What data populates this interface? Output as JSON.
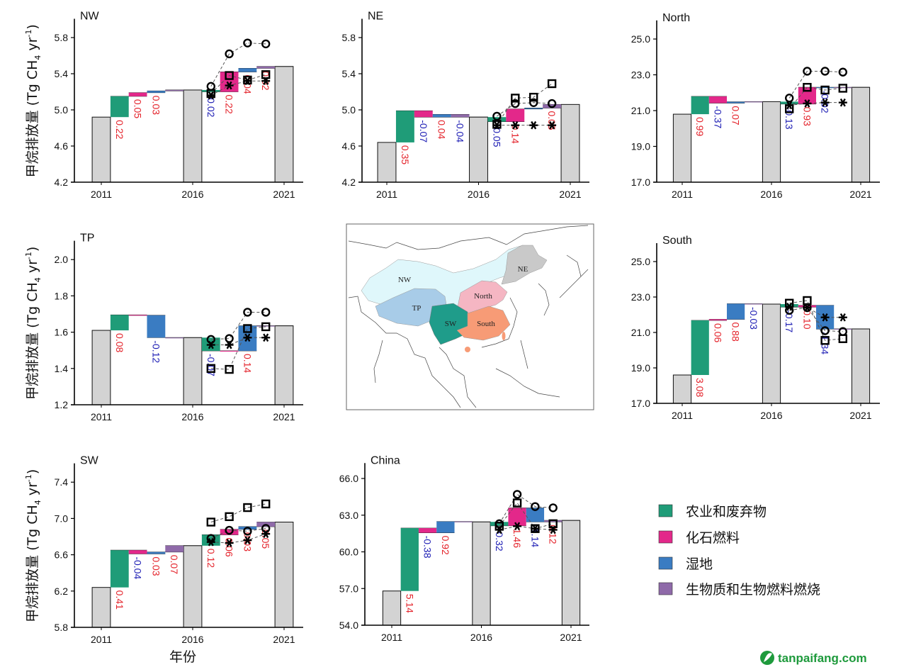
{
  "y_axis_label": {
    "main": "甲烷排放量 (Tg CH",
    "sub": "4",
    "mid": " yr",
    "sup": "-1",
    "end": ")"
  },
  "x_axis_label": "年份",
  "colors": {
    "agriculture_waste": "#1f9c78",
    "fossil_fuel": "#e3288a",
    "wetland": "#3a7cc2",
    "biomass_biofuel_burning": "#8f6aa9",
    "total_bar": "#d3d3d3",
    "positive_label": "#e4232b",
    "negative_label": "#1c1cb4"
  },
  "legend": {
    "placement": "bottom-right",
    "items": [
      {
        "key": "agriculture_waste",
        "label": "农业和废弃物"
      },
      {
        "key": "fossil_fuel",
        "label": "化石燃料"
      },
      {
        "key": "wetland",
        "label": "湿地"
      },
      {
        "key": "biomass_biofuel_burning",
        "label": "生物质和生物燃料燃烧"
      }
    ]
  },
  "map": {
    "region_labels": [
      "NW",
      "NE",
      "North",
      "TP",
      "SW",
      "South"
    ],
    "region_colors": {
      "NW": "#dff7fb",
      "NE": "#c9c9c9",
      "North": "#f5b6c3",
      "TP": "#a8cce8",
      "SW": "#1f9c8a",
      "South": "#f79b76"
    }
  },
  "watermark": "tanpaifang.com",
  "chart_data": [
    {
      "type": "waterfall",
      "title": "NW",
      "ylim": [
        4.2,
        6.0
      ],
      "yticks": [
        "4.2",
        "4.6",
        "5.0",
        "5.4",
        "5.8"
      ],
      "xticks": [
        "2011",
        "2016",
        "2021"
      ],
      "totals": {
        "2011": 4.92,
        "2016": 5.22,
        "2021": 5.48
      },
      "steps_2011_2016": [
        {
          "source": "agriculture_waste",
          "from": 4.92,
          "to": 5.15,
          "label": "0.22"
        },
        {
          "source": "fossil_fuel",
          "from": 5.15,
          "to": 5.19,
          "label": "0.05"
        },
        {
          "source": "wetland",
          "from": 5.19,
          "to": 5.21,
          "label": "0.03"
        },
        {
          "source": "biomass_biofuel_burning",
          "from": 5.21,
          "to": 5.22,
          "label": null
        }
      ],
      "steps_2016_2021": [
        {
          "source": "agriculture_waste",
          "from": 5.22,
          "to": 5.2,
          "label": "-0.02"
        },
        {
          "source": "fossil_fuel",
          "from": 5.2,
          "to": 5.42,
          "label": "0.22"
        },
        {
          "source": "wetland",
          "from": 5.42,
          "to": 5.46,
          "label": "0.04"
        },
        {
          "source": "biomass_biofuel_burning",
          "from": 5.46,
          "to": 5.48,
          "label": "0.02"
        }
      ],
      "markers": [
        {
          "marker": "circle",
          "values": [
            5.26,
            5.62,
            5.74,
            5.73
          ]
        },
        {
          "marker": "square",
          "values": [
            5.18,
            5.38,
            5.33,
            5.39
          ]
        },
        {
          "marker": "asterisk",
          "values": [
            5.16,
            5.27,
            5.32,
            5.32
          ]
        }
      ]
    },
    {
      "type": "waterfall",
      "title": "NE",
      "ylim": [
        4.2,
        6.0
      ],
      "yticks": [
        "4.2",
        "4.6",
        "5.0",
        "5.4",
        "5.8"
      ],
      "xticks": [
        "2011",
        "2016",
        "2021"
      ],
      "totals": {
        "2011": 4.64,
        "2016": 4.92,
        "2021": 5.06
      },
      "steps_2011_2016": [
        {
          "source": "agriculture_waste",
          "from": 4.64,
          "to": 4.99,
          "label": "0.35"
        },
        {
          "source": "fossil_fuel",
          "from": 4.99,
          "to": 4.92,
          "label": "-0.07"
        },
        {
          "source": "wetland",
          "from": 4.92,
          "to": 4.95,
          "label": "0.04"
        },
        {
          "source": "biomass_biofuel_burning",
          "from": 4.95,
          "to": 4.92,
          "label": "-0.04"
        }
      ],
      "steps_2016_2021": [
        {
          "source": "agriculture_waste",
          "from": 4.92,
          "to": 4.87,
          "label": "-0.05"
        },
        {
          "source": "fossil_fuel",
          "from": 4.87,
          "to": 5.01,
          "label": "0.14"
        },
        {
          "source": "wetland",
          "from": 5.01,
          "to": 5.02,
          "label": null
        },
        {
          "source": "biomass_biofuel_burning",
          "from": 5.02,
          "to": 5.06,
          "label": "0.05"
        }
      ],
      "markers": [
        {
          "marker": "square",
          "values": [
            4.84,
            5.13,
            5.14,
            5.29
          ]
        },
        {
          "marker": "circle",
          "values": [
            4.93,
            5.07,
            5.08,
            5.07
          ]
        },
        {
          "marker": "asterisk",
          "values": [
            4.83,
            4.83,
            4.83,
            4.83
          ]
        }
      ]
    },
    {
      "type": "waterfall",
      "title": "North",
      "ylim": [
        17.0,
        26.0
      ],
      "yticks": [
        "17.0",
        "19.0",
        "21.0",
        "23.0",
        "25.0"
      ],
      "xticks": [
        "2011",
        "2016",
        "2021"
      ],
      "totals": {
        "2011": 20.8,
        "2016": 21.5,
        "2021": 22.3
      },
      "steps_2011_2016": [
        {
          "source": "agriculture_waste",
          "from": 20.8,
          "to": 21.79,
          "label": "0.99"
        },
        {
          "source": "fossil_fuel",
          "from": 21.79,
          "to": 21.42,
          "label": "-0.37"
        },
        {
          "source": "wetland",
          "from": 21.42,
          "to": 21.49,
          "label": "0.07"
        },
        {
          "source": "biomass_biofuel_burning",
          "from": 21.49,
          "to": 21.5,
          "label": null
        }
      ],
      "steps_2016_2021": [
        {
          "source": "agriculture_waste",
          "from": 21.5,
          "to": 21.37,
          "label": "-0.13"
        },
        {
          "source": "fossil_fuel",
          "from": 21.37,
          "to": 22.3,
          "label": "0.93"
        },
        {
          "source": "wetland",
          "from": 22.3,
          "to": 22.28,
          "label": "-0.02"
        },
        {
          "source": "biomass_biofuel_burning",
          "from": 22.28,
          "to": 22.3,
          "label": null
        }
      ],
      "markers": [
        {
          "marker": "circle",
          "values": [
            21.7,
            23.2,
            23.2,
            23.15
          ]
        },
        {
          "marker": "square",
          "values": [
            21.1,
            22.3,
            22.15,
            22.25
          ]
        },
        {
          "marker": "asterisk",
          "values": [
            21.3,
            21.4,
            21.45,
            21.45
          ]
        }
      ]
    },
    {
      "type": "waterfall",
      "title": "TP",
      "ylim": [
        1.2,
        2.1
      ],
      "yticks": [
        "1.2",
        "1.4",
        "1.6",
        "1.8",
        "2.0"
      ],
      "xticks": [
        "2011",
        "2016",
        "2021"
      ],
      "totals": {
        "2011": 1.61,
        "2016": 1.57,
        "2021": 1.635
      },
      "steps_2011_2016": [
        {
          "source": "agriculture_waste",
          "from": 1.61,
          "to": 1.695,
          "label": "0.08"
        },
        {
          "source": "fossil_fuel",
          "from": 1.695,
          "to": 1.693,
          "label": null
        },
        {
          "source": "wetland",
          "from": 1.693,
          "to": 1.57,
          "label": "-0.12"
        },
        {
          "source": "biomass_biofuel_burning",
          "from": 1.57,
          "to": 1.57,
          "label": null
        }
      ],
      "steps_2016_2021": [
        {
          "source": "agriculture_waste",
          "from": 1.57,
          "to": 1.497,
          "label": "-0.07"
        },
        {
          "source": "fossil_fuel",
          "from": 1.497,
          "to": 1.497,
          "label": null
        },
        {
          "source": "wetland",
          "from": 1.497,
          "to": 1.635,
          "label": "0.14"
        },
        {
          "source": "biomass_biofuel_burning",
          "from": 1.635,
          "to": 1.635,
          "label": null
        }
      ],
      "markers": [
        {
          "marker": "circle",
          "values": [
            1.56,
            1.565,
            1.71,
            1.71
          ]
        },
        {
          "marker": "square",
          "values": [
            1.4,
            1.395,
            1.62,
            1.63
          ]
        },
        {
          "marker": "asterisk",
          "values": [
            1.53,
            1.53,
            1.57,
            1.57
          ]
        }
      ]
    },
    {
      "type": "waterfall",
      "title": "South",
      "ylim": [
        17.0,
        26.0
      ],
      "yticks": [
        "17.0",
        "19.0",
        "21.0",
        "23.0",
        "25.0"
      ],
      "xticks": [
        "2011",
        "2016",
        "2021"
      ],
      "totals": {
        "2011": 18.6,
        "2016": 22.6,
        "2021": 21.2
      },
      "steps_2011_2016": [
        {
          "source": "agriculture_waste",
          "from": 18.6,
          "to": 21.68,
          "label": "3.08"
        },
        {
          "source": "fossil_fuel",
          "from": 21.68,
          "to": 21.74,
          "label": "0.06"
        },
        {
          "source": "wetland",
          "from": 21.74,
          "to": 22.62,
          "label": "0.88"
        },
        {
          "source": "biomass_biofuel_burning",
          "from": 22.62,
          "to": 22.6,
          "label": "-0.03"
        }
      ],
      "steps_2016_2021": [
        {
          "source": "agriculture_waste",
          "from": 22.6,
          "to": 22.43,
          "label": "-0.17"
        },
        {
          "source": "fossil_fuel",
          "from": 22.43,
          "to": 22.53,
          "label": "0.10"
        },
        {
          "source": "wetland",
          "from": 22.53,
          "to": 21.19,
          "label": "-1.34"
        },
        {
          "source": "biomass_biofuel_burning",
          "from": 21.19,
          "to": 21.2,
          "label": null
        }
      ],
      "markers": [
        {
          "marker": "square",
          "values": [
            22.65,
            22.8,
            20.55,
            20.65
          ]
        },
        {
          "marker": "circle",
          "values": [
            22.25,
            22.4,
            21.1,
            21.05
          ]
        },
        {
          "marker": "asterisk",
          "values": [
            22.45,
            22.4,
            21.85,
            21.85
          ]
        }
      ]
    },
    {
      "type": "waterfall",
      "title": "SW",
      "ylim": [
        5.8,
        7.6
      ],
      "yticks": [
        "5.8",
        "6.2",
        "6.6",
        "7.0",
        "7.4"
      ],
      "xticks": [
        "2011",
        "2016",
        "2021"
      ],
      "totals": {
        "2011": 6.24,
        "2016": 6.7,
        "2021": 6.96
      },
      "steps_2011_2016": [
        {
          "source": "agriculture_waste",
          "from": 6.24,
          "to": 6.65,
          "label": "0.41"
        },
        {
          "source": "fossil_fuel",
          "from": 6.65,
          "to": 6.61,
          "label": "-0.04"
        },
        {
          "source": "wetland",
          "from": 6.61,
          "to": 6.63,
          "label": "0.03"
        },
        {
          "source": "biomass_biofuel_burning",
          "from": 6.63,
          "to": 6.7,
          "label": "0.07"
        }
      ],
      "steps_2016_2021": [
        {
          "source": "agriculture_waste",
          "from": 6.7,
          "to": 6.82,
          "label": "0.12"
        },
        {
          "source": "fossil_fuel",
          "from": 6.82,
          "to": 6.88,
          "label": "0.06"
        },
        {
          "source": "wetland",
          "from": 6.88,
          "to": 6.91,
          "label": "0.03"
        },
        {
          "source": "biomass_biofuel_burning",
          "from": 6.91,
          "to": 6.96,
          "label": "0.05"
        }
      ],
      "markers": [
        {
          "marker": "square",
          "values": [
            6.96,
            7.02,
            7.12,
            7.16
          ]
        },
        {
          "marker": "circle",
          "values": [
            6.78,
            6.87,
            6.86,
            6.89
          ]
        },
        {
          "marker": "asterisk",
          "values": [
            6.74,
            6.73,
            6.76,
            6.83
          ]
        }
      ]
    },
    {
      "type": "waterfall",
      "title": "China",
      "ylim": [
        54.0,
        67.2
      ],
      "yticks": [
        "54.0",
        "57.0",
        "60.0",
        "63.0",
        "66.0"
      ],
      "xticks": [
        "2011",
        "2016",
        "2021"
      ],
      "totals": {
        "2011": 56.8,
        "2016": 62.45,
        "2021": 62.57
      },
      "steps_2011_2016": [
        {
          "source": "agriculture_waste",
          "from": 56.8,
          "to": 61.94,
          "label": "5.14"
        },
        {
          "source": "fossil_fuel",
          "from": 61.94,
          "to": 61.56,
          "label": "-0.38"
        },
        {
          "source": "wetland",
          "from": 61.56,
          "to": 62.48,
          "label": "0.92"
        },
        {
          "source": "biomass_biofuel_burning",
          "from": 62.48,
          "to": 62.45,
          "label": null
        }
      ],
      "steps_2016_2021": [
        {
          "source": "agriculture_waste",
          "from": 62.45,
          "to": 62.13,
          "label": "-0.32"
        },
        {
          "source": "fossil_fuel",
          "from": 62.13,
          "to": 63.59,
          "label": "1.46"
        },
        {
          "source": "wetland",
          "from": 63.59,
          "to": 62.45,
          "label": "-1.14"
        },
        {
          "source": "biomass_biofuel_burning",
          "from": 62.45,
          "to": 62.57,
          "label": "0.12"
        }
      ],
      "markers": [
        {
          "marker": "circle",
          "values": [
            62.3,
            64.7,
            63.7,
            63.6
          ]
        },
        {
          "marker": "square",
          "values": [
            62.1,
            64.0,
            61.9,
            62.3
          ]
        },
        {
          "marker": "asterisk",
          "values": [
            61.8,
            62.1,
            61.9,
            61.8
          ]
        }
      ]
    }
  ]
}
